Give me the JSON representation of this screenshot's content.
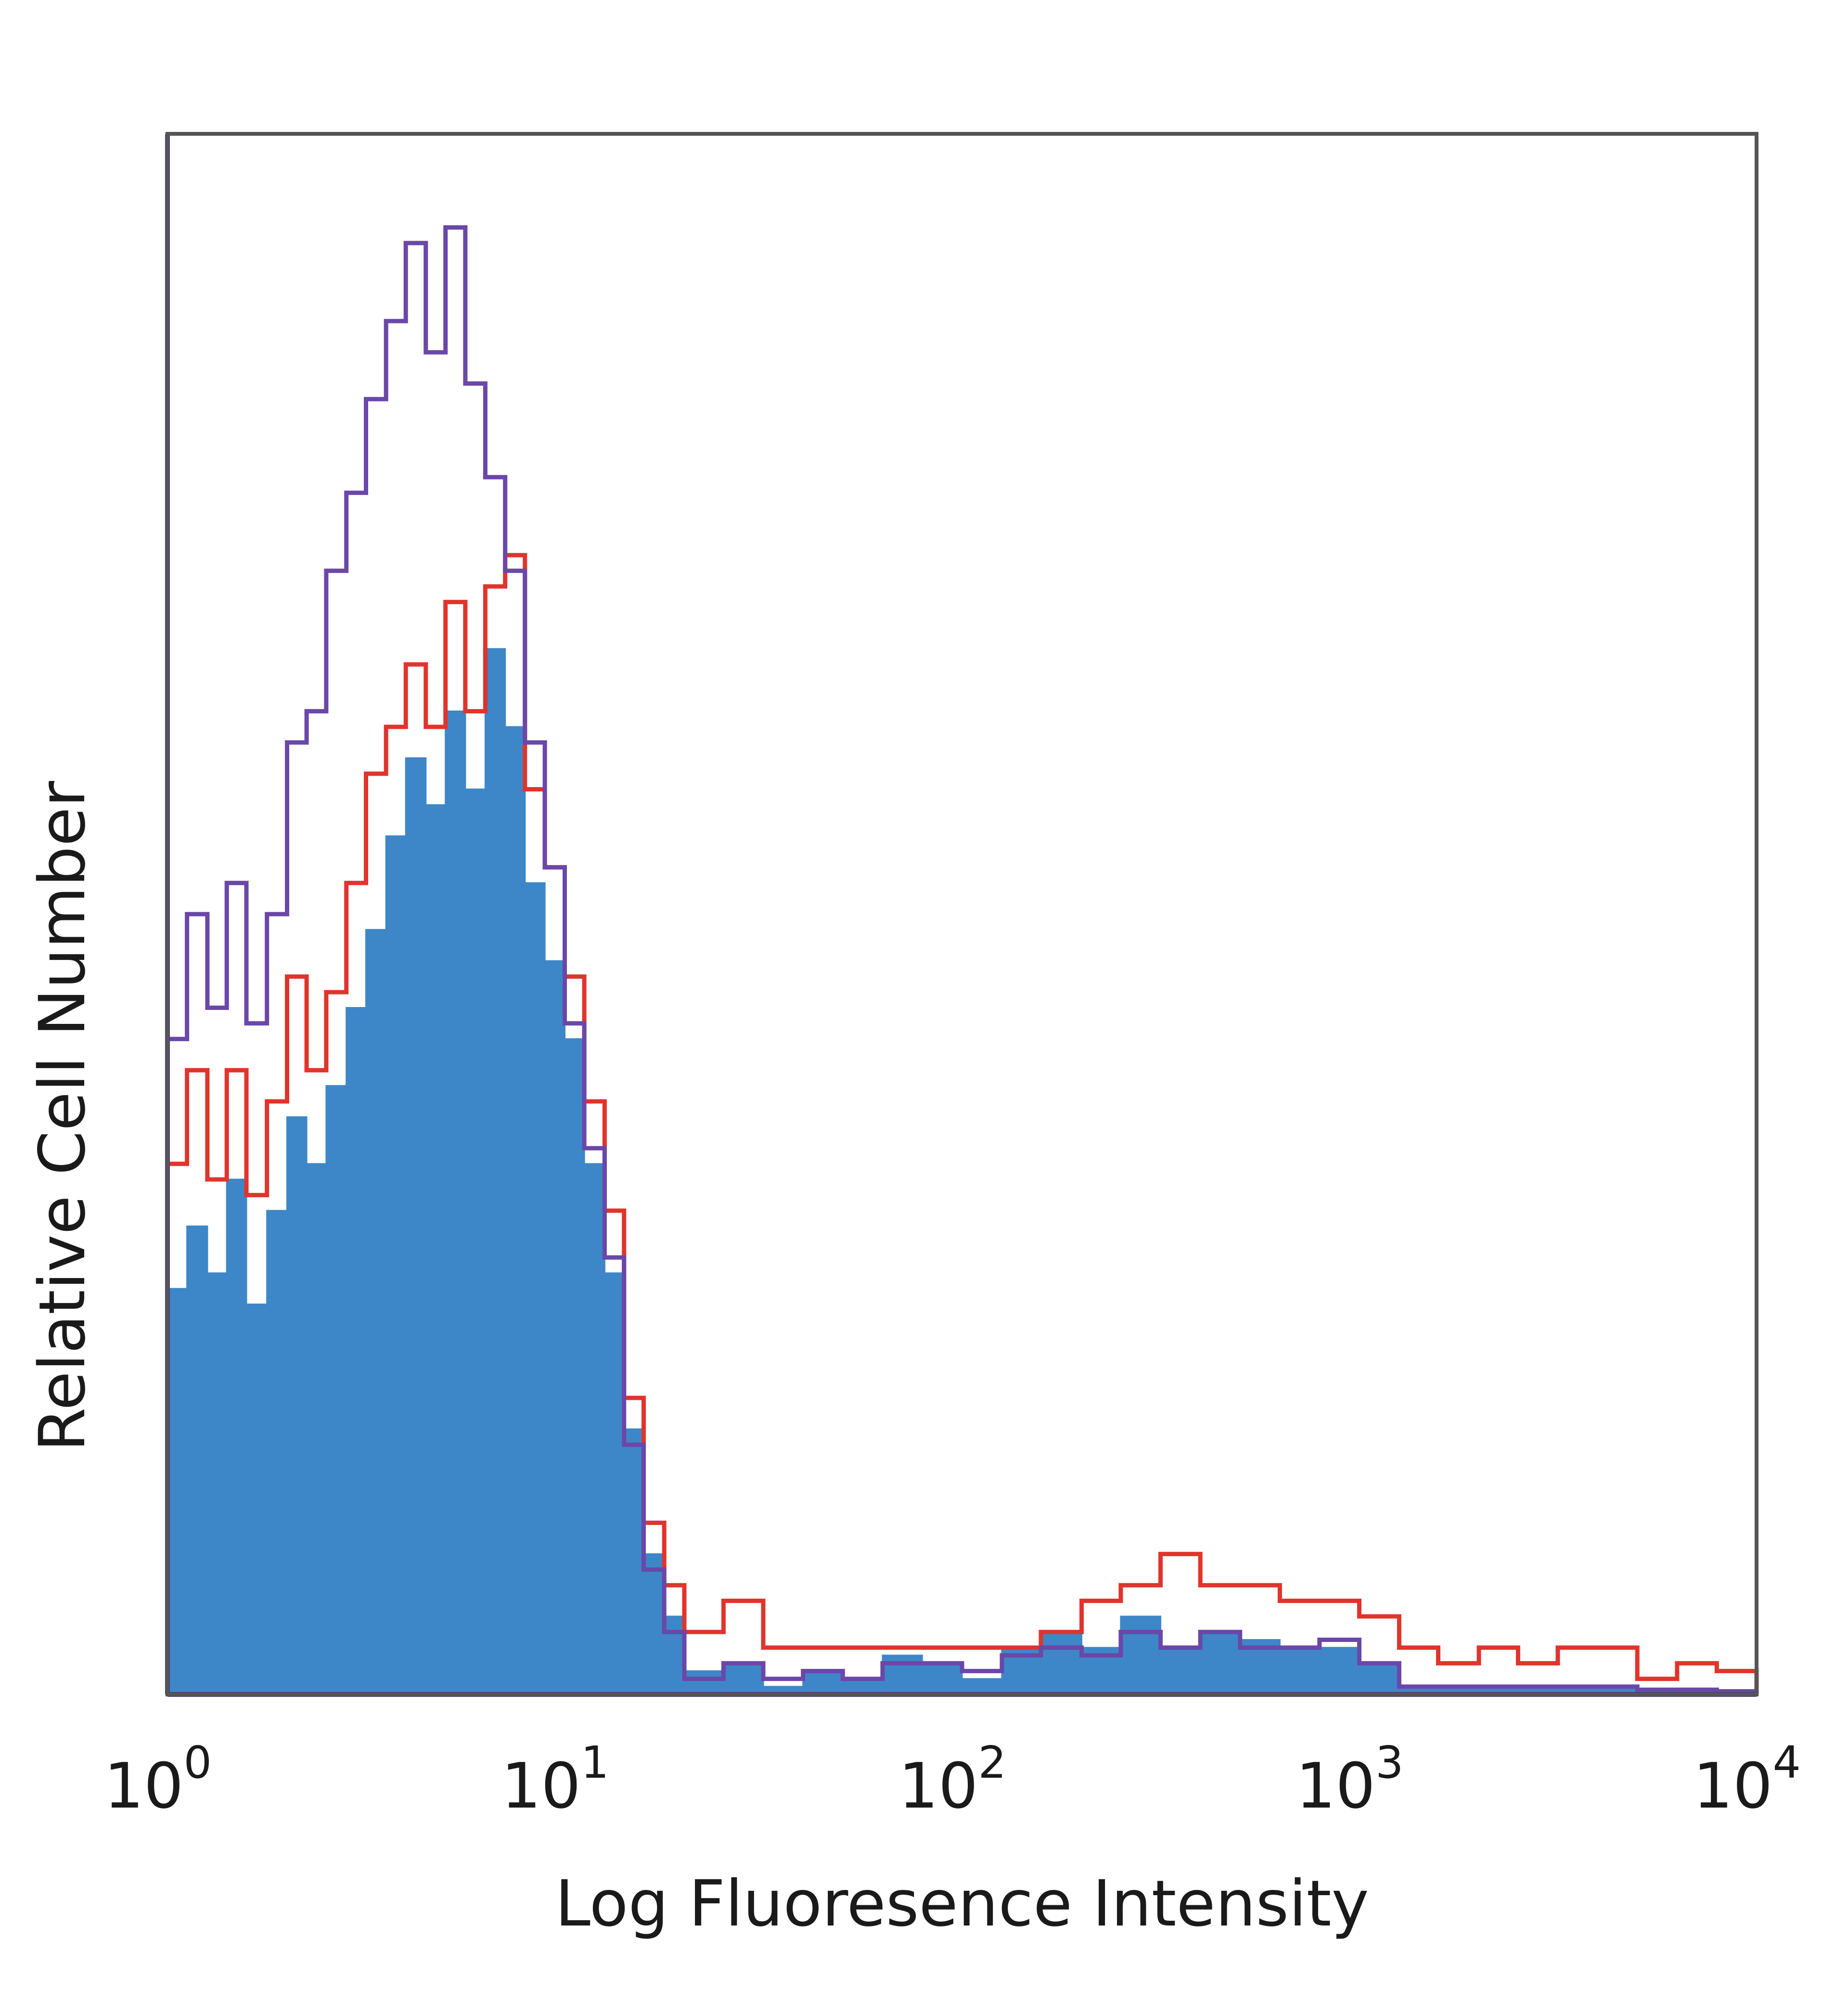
{
  "chart_data": {
    "type": "area",
    "xlabel": "Log Fluoresence Intensity",
    "ylabel": "Relative Cell Number",
    "x_scale": "log",
    "xlim": [
      1,
      10000
    ],
    "ylim": [
      0,
      100
    ],
    "grid": false,
    "x_ticks": [
      {
        "base": "10",
        "exp": "0",
        "value": 1
      },
      {
        "base": "10",
        "exp": "1",
        "value": 10
      },
      {
        "base": "10",
        "exp": "2",
        "value": 100
      },
      {
        "base": "10",
        "exp": "3",
        "value": 1000
      },
      {
        "base": "10",
        "exp": "4",
        "value": 10000
      }
    ],
    "series": [
      {
        "style": "filled",
        "color": "#3d87c8",
        "x": [
          1.0,
          1.12,
          1.26,
          1.41,
          1.58,
          1.78,
          2.0,
          2.24,
          2.51,
          2.82,
          3.16,
          3.55,
          3.98,
          4.47,
          5.01,
          5.62,
          6.31,
          7.08,
          7.94,
          8.91,
          10.0,
          11.2,
          12.6,
          14.1,
          15.8,
          17.8,
          20.0,
          25.1,
          31.6,
          39.8,
          50.1,
          63.1,
          79.4,
          100.0,
          126.0,
          158.0,
          200.0,
          251.0,
          316.0,
          398.0,
          501.0,
          631.0,
          794.0,
          1000.0,
          1260.0,
          1580.0,
          2000.0,
          2510.0,
          3160.0,
          3980.0,
          5010.0,
          6310.0,
          7940.0,
          10000.0
        ],
        "y": [
          26,
          30,
          27,
          33,
          25,
          31,
          37,
          34,
          39,
          44,
          49,
          55,
          60,
          57,
          63,
          58,
          67,
          62,
          52,
          47,
          42,
          34,
          27,
          17,
          9,
          5,
          1.5,
          2,
          0.5,
          1.5,
          1,
          2.5,
          2,
          1,
          3,
          4,
          3,
          5,
          3,
          4,
          3.5,
          3,
          3,
          2,
          0.5,
          0.5,
          0.5,
          0.5,
          0.5,
          0.5,
          0.3,
          0.3,
          0.2,
          0
        ]
      },
      {
        "style": "outline",
        "color": "#e0342c",
        "x": [
          1.0,
          1.12,
          1.26,
          1.41,
          1.58,
          1.78,
          2.0,
          2.24,
          2.51,
          2.82,
          3.16,
          3.55,
          3.98,
          4.47,
          5.01,
          5.62,
          6.31,
          7.08,
          7.94,
          8.91,
          10.0,
          11.2,
          12.6,
          14.1,
          15.8,
          17.8,
          20.0,
          25.1,
          31.6,
          39.8,
          50.1,
          63.1,
          79.4,
          100.0,
          126.0,
          158.0,
          200.0,
          251.0,
          316.0,
          398.0,
          501.0,
          631.0,
          794.0,
          1000.0,
          1260.0,
          1580.0,
          2000.0,
          2510.0,
          3160.0,
          3980.0,
          5010.0,
          6310.0,
          7940.0,
          10000.0
        ],
        "y": [
          34,
          40,
          33,
          40,
          32,
          38,
          46,
          40,
          45,
          52,
          59,
          62,
          66,
          62,
          70,
          63,
          71,
          73,
          58,
          53,
          46,
          38,
          31,
          19,
          11,
          7,
          4,
          6,
          3,
          3,
          3,
          3,
          3,
          3,
          3,
          4,
          6,
          7,
          9,
          7,
          7,
          6,
          6,
          5,
          3,
          2,
          3,
          2,
          3,
          3,
          1,
          2,
          1.5,
          0
        ]
      },
      {
        "style": "outline",
        "color": "#6a47a8",
        "x": [
          1.0,
          1.12,
          1.26,
          1.41,
          1.58,
          1.78,
          2.0,
          2.24,
          2.51,
          2.82,
          3.16,
          3.55,
          3.98,
          4.47,
          5.01,
          5.62,
          6.31,
          7.08,
          7.94,
          8.91,
          10.0,
          11.2,
          12.6,
          14.1,
          15.8,
          17.8,
          20.0,
          25.1,
          31.6,
          39.8,
          50.1,
          63.1,
          79.4,
          100.0,
          126.0,
          158.0,
          200.0,
          251.0,
          316.0,
          398.0,
          501.0,
          631.0,
          794.0,
          1000.0,
          1260.0,
          1580.0,
          2000.0,
          2510.0,
          3160.0,
          3980.0,
          5010.0,
          6310.0,
          7940.0,
          10000.0
        ],
        "y": [
          42,
          50,
          44,
          52,
          43,
          50,
          61,
          63,
          72,
          77,
          83,
          88,
          93,
          86,
          94,
          84,
          78,
          72,
          61,
          53,
          43,
          35,
          28,
          16,
          8,
          4,
          1,
          2,
          1,
          1.5,
          1,
          2,
          2,
          1.5,
          2.5,
          3,
          2.5,
          4,
          3,
          4,
          3,
          3,
          3.5,
          2,
          0.5,
          0.5,
          0.5,
          0.5,
          0.5,
          0.5,
          0.3,
          0.3,
          0.2,
          0
        ]
      }
    ]
  }
}
